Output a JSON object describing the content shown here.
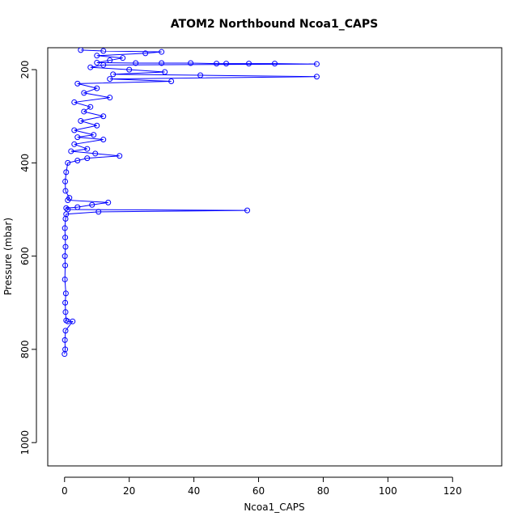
{
  "chart_data": {
    "type": "line",
    "title": "ATOM2 Northbound Ncoa1_CAPS",
    "xlabel": "Ncoa1_CAPS",
    "ylabel": "Pressure (mbar)",
    "color": "#0000ff",
    "marker": "circle",
    "y_reversed": true,
    "xlim": [
      -5.2,
      135.2
    ],
    "xticks": [
      0,
      20,
      40,
      60,
      80,
      100,
      120
    ],
    "ylim": [
      153,
      1050
    ],
    "yticks": [
      200,
      400,
      600,
      800,
      1000
    ],
    "x": [
      0,
      0.2,
      0.1,
      0.3,
      2.5,
      1.0,
      0.5,
      0.3,
      0.2,
      0.4,
      0.1,
      0.2,
      0.1,
      0.3,
      0.2,
      0.1,
      0.3,
      0.5,
      10.5,
      56.5,
      1.0,
      0.5,
      4,
      8.5,
      13.5,
      1,
      1.5,
      0.3,
      0.2,
      0.5,
      1,
      4,
      7,
      17,
      9.5,
      2,
      7,
      3,
      12,
      4,
      9,
      3,
      10,
      5,
      12,
      6,
      8,
      3,
      14,
      6,
      10,
      4,
      33,
      14,
      78,
      42,
      15,
      31,
      20,
      8,
      12,
      78,
      65,
      57,
      50,
      47,
      39,
      30,
      22,
      10,
      14,
      18,
      10,
      25,
      30,
      12,
      5
    ],
    "values": [
      810,
      800,
      780,
      760,
      740,
      740,
      738,
      720,
      700,
      680,
      650,
      620,
      600,
      580,
      560,
      540,
      520,
      510,
      505,
      502,
      500,
      497,
      495,
      490,
      485,
      480,
      475,
      460,
      440,
      420,
      400,
      395,
      390,
      385,
      380,
      375,
      370,
      360,
      350,
      345,
      340,
      330,
      320,
      310,
      300,
      290,
      280,
      270,
      260,
      250,
      240,
      230,
      225,
      220,
      215,
      212,
      210,
      205,
      200,
      195,
      190,
      188,
      187,
      187,
      187,
      187,
      186,
      186,
      186,
      185,
      180,
      175,
      170,
      165,
      162,
      160,
      158
    ]
  }
}
